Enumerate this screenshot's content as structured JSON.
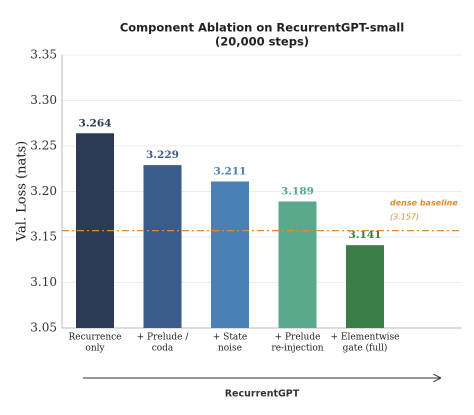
{
  "chart_data": {
    "type": "bar",
    "title": "Component Ablation on RecurrentGPT-small",
    "subtitle": "(20,000 steps)",
    "ylabel": "Val. Loss (nats)",
    "xlabel": "RecurrentGPT",
    "categories": [
      [
        "Recurrence",
        "only"
      ],
      [
        "+ Prelude /",
        "coda"
      ],
      [
        "+ State",
        "noise"
      ],
      [
        "+ Prelude",
        "re-injection"
      ],
      [
        "+ Elementwise",
        "gate (full)"
      ]
    ],
    "values": [
      3.264,
      3.229,
      3.211,
      3.189,
      3.141
    ],
    "colors": [
      "#2c3a56",
      "#3b5b8d",
      "#4a80b6",
      "#5aa98a",
      "#3a7e45"
    ],
    "label_colors": [
      "#2c3a56",
      "#3b5b8d",
      "#4a80b6",
      "#5aa98a",
      "#3a7e45"
    ],
    "baseline": {
      "name": "dense baseline",
      "value": 3.157,
      "value_label": "(3.157)",
      "color": "#e08a2e"
    },
    "ylim": [
      3.05,
      3.35
    ],
    "yticks": [
      3.05,
      {
        "value": 3.1,
        "label": "3.10"
      },
      3.15,
      {
        "value": 3.2,
        "label": "3.20"
      },
      3.25,
      {
        "value": 3.3,
        "label": "3.30"
      },
      3.35
    ],
    "grid": true
  }
}
